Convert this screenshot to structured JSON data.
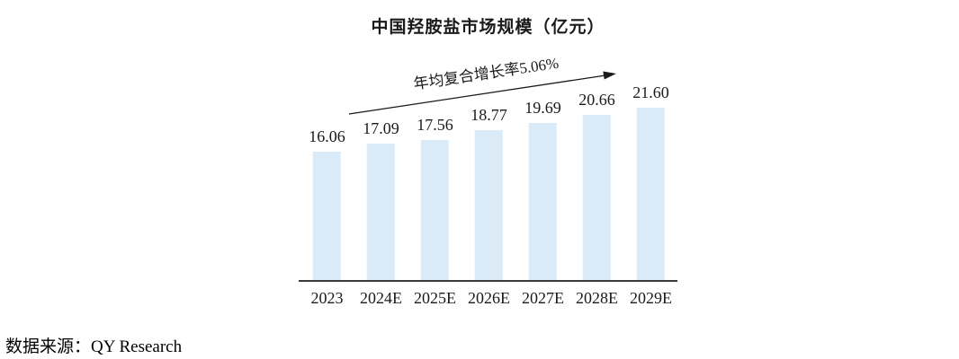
{
  "chart_data": {
    "type": "bar",
    "title": "中国羟胺盐市场规模（亿元）",
    "categories": [
      "2023",
      "2024E",
      "2025E",
      "2026E",
      "2027E",
      "2028E",
      "2029E"
    ],
    "values": [
      16.06,
      17.09,
      17.56,
      18.77,
      19.69,
      20.66,
      21.6
    ],
    "value_labels": [
      "16.06",
      "17.09",
      "17.56",
      "18.77",
      "19.69",
      "20.66",
      "21.60"
    ],
    "annotation": "年均复合增长率5.06%",
    "source": "数据来源：QY Research",
    "bar_color": "#daeaf7",
    "axis_color": "#3a3a3a",
    "arrow_color": "#1a1a1a",
    "xlabel": "",
    "ylabel": "",
    "ylim": [
      0,
      21.6
    ],
    "grid": false,
    "legend": "none"
  }
}
